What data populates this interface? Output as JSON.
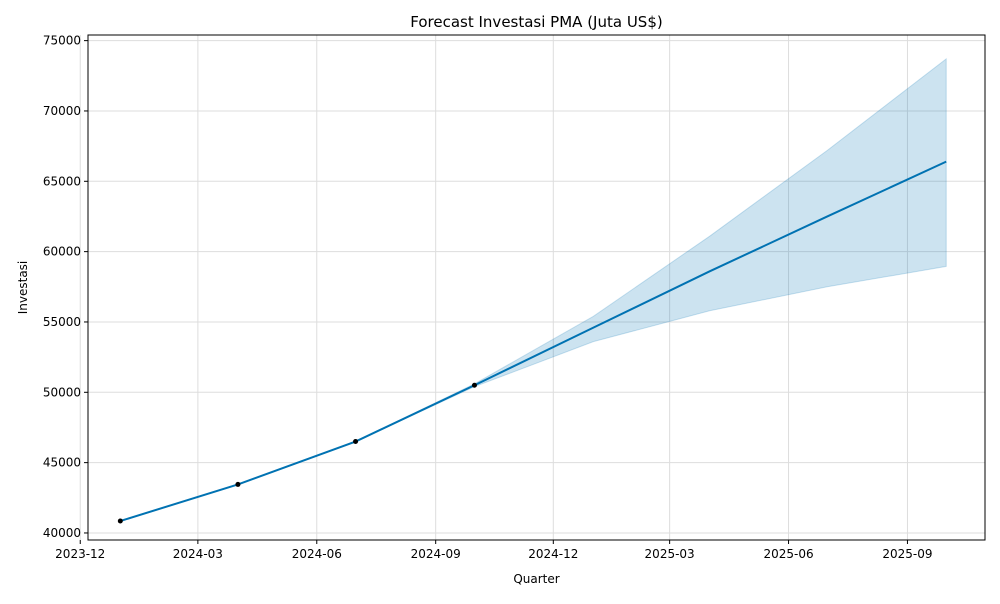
{
  "chart_data": {
    "type": "line",
    "title": "Forecast Investasi PMA (Juta US$)",
    "xlabel": "Quarter",
    "ylabel": "Investasi",
    "x_axis_type": "date",
    "xlim": [
      "2023-12-07",
      "2025-10-31"
    ],
    "ylim": [
      39500,
      75400
    ],
    "x_ticks": [
      "2023-12",
      "2024-03",
      "2024-06",
      "2024-09",
      "2024-12",
      "2025-03",
      "2025-06",
      "2025-09"
    ],
    "y_ticks": [
      40000,
      45000,
      50000,
      55000,
      60000,
      65000,
      70000,
      75000
    ],
    "grid": true,
    "observed": [
      {
        "x": "2024-01-01",
        "y": 40850
      },
      {
        "x": "2024-04-01",
        "y": 43450
      },
      {
        "x": "2024-07-01",
        "y": 46500
      },
      {
        "x": "2024-10-01",
        "y": 50500
      }
    ],
    "forecast": [
      {
        "x": "2024-01-01",
        "y": 40850,
        "lower": 40850,
        "upper": 40850
      },
      {
        "x": "2024-04-01",
        "y": 43450,
        "lower": 43450,
        "upper": 43450
      },
      {
        "x": "2024-07-01",
        "y": 46500,
        "lower": 46500,
        "upper": 46500
      },
      {
        "x": "2024-10-01",
        "y": 50500,
        "lower": 50400,
        "upper": 50600
      },
      {
        "x": "2025-01-01",
        "y": 54600,
        "lower": 53600,
        "upper": 55400
      },
      {
        "x": "2025-04-01",
        "y": 58600,
        "lower": 55800,
        "upper": 61100
      },
      {
        "x": "2025-07-01",
        "y": 62500,
        "lower": 57500,
        "upper": 67200
      },
      {
        "x": "2025-10-01",
        "y": 66400,
        "lower": 58950,
        "upper": 73700
      }
    ],
    "colors": {
      "line": "#0072b2",
      "band": "#0072b2",
      "points": "#000000",
      "grid": "#dddddd"
    }
  }
}
